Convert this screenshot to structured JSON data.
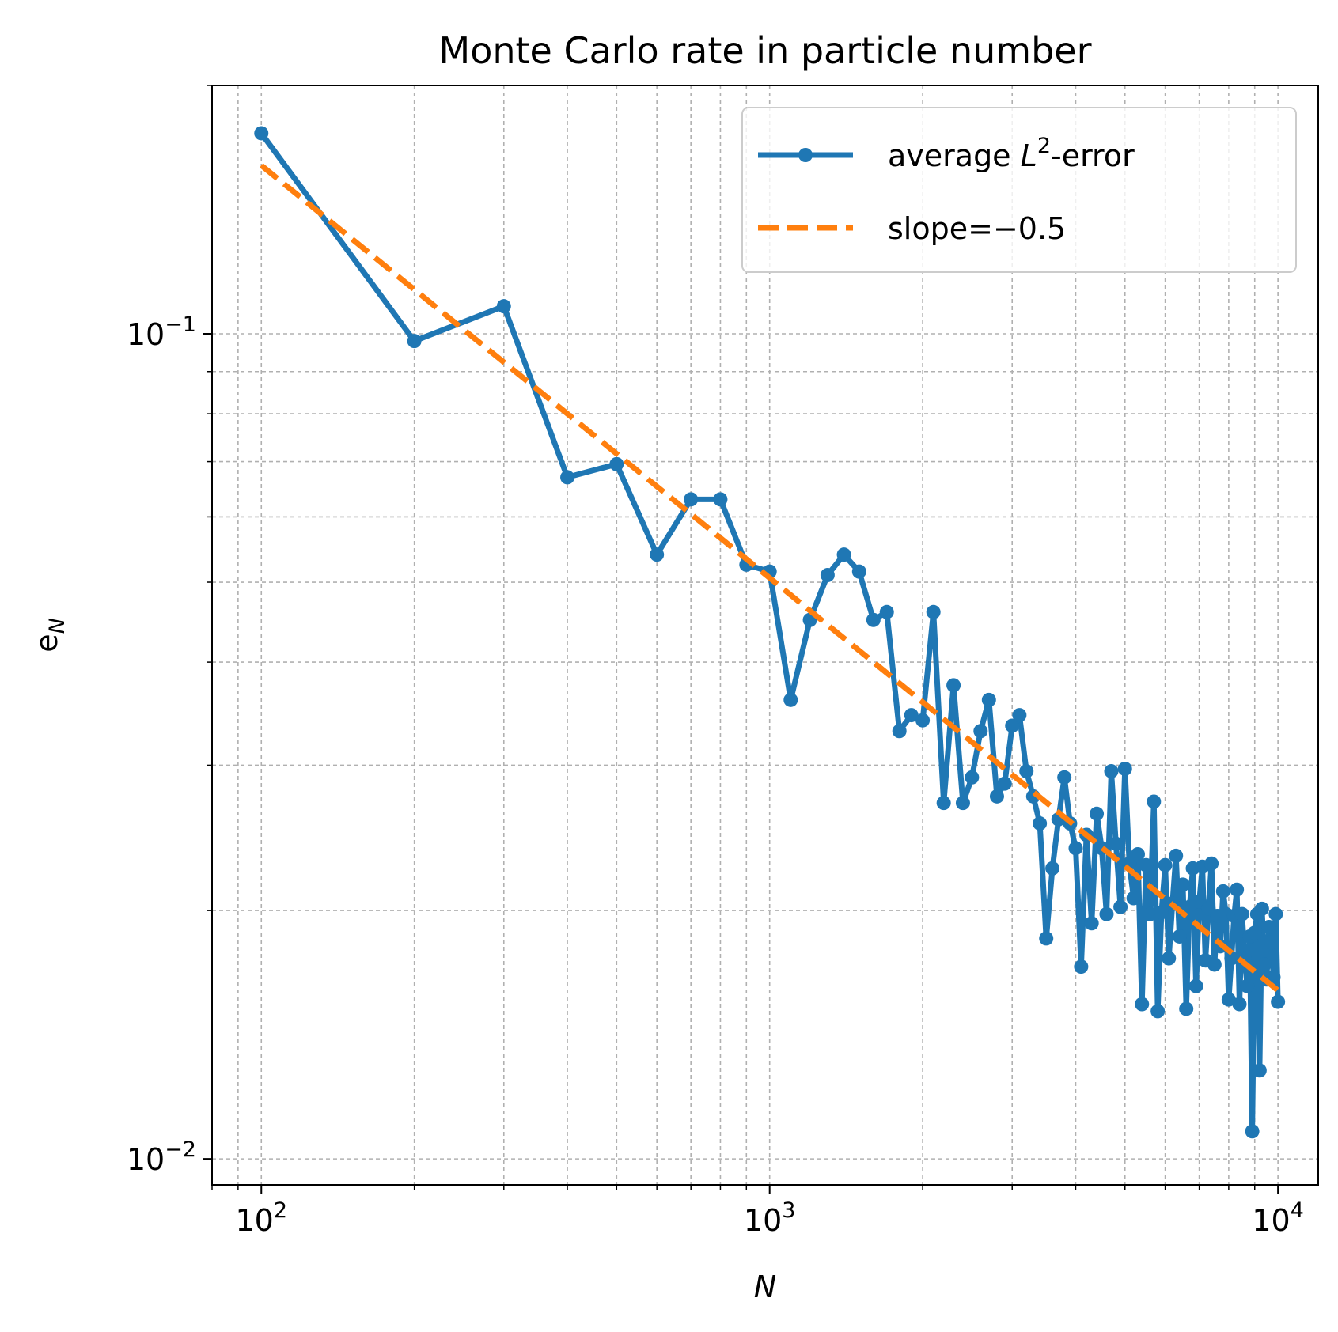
{
  "chart_data": {
    "type": "line",
    "title": "Monte Carlo rate in particle number",
    "xlabel": "N",
    "ylabel_base": "e",
    "ylabel_sub": "N",
    "xscale": "log",
    "yscale": "log",
    "xlim": [
      80,
      12000
    ],
    "ylim": [
      0.0093,
      0.2
    ],
    "grid": true,
    "legend_position": "top-right",
    "x_ticks": [
      {
        "base": "10",
        "exp": "2",
        "value": 100
      },
      {
        "base": "10",
        "exp": "3",
        "value": 1000
      },
      {
        "base": "10",
        "exp": "4",
        "value": 10000
      }
    ],
    "y_ticks": [
      {
        "base": "10",
        "exp": "−1",
        "value": 0.1
      },
      {
        "base": "10",
        "exp": "−2",
        "value": 0.01
      }
    ],
    "series": [
      {
        "name": "average L²-error",
        "legend_label_pre": "average ",
        "legend_label_math": "L",
        "legend_label_sup": "2",
        "legend_label_post": "-error",
        "color": "#1f77b4",
        "style": "solid",
        "marker": "circle",
        "x": [
          100,
          200,
          300,
          400,
          500,
          600,
          700,
          800,
          900,
          1000,
          1100,
          1200,
          1300,
          1400,
          1500,
          1600,
          1700,
          1800,
          1900,
          2000,
          2100,
          2200,
          2300,
          2400,
          2500,
          2600,
          2700,
          2800,
          2900,
          3000,
          3100,
          3200,
          3300,
          3400,
          3500,
          3600,
          3700,
          3800,
          3900,
          4000,
          4100,
          4200,
          4300,
          4400,
          4500,
          4600,
          4700,
          4800,
          4900,
          5000,
          5100,
          5200,
          5300,
          5400,
          5500,
          5600,
          5700,
          5800,
          5900,
          6000,
          6100,
          6200,
          6300,
          6400,
          6500,
          6600,
          6700,
          6800,
          6900,
          7000,
          7100,
          7200,
          7300,
          7400,
          7500,
          7600,
          7700,
          7800,
          7900,
          8000,
          8100,
          8200,
          8300,
          8400,
          8500,
          8600,
          8700,
          8800,
          8900,
          9000,
          9100,
          9200,
          9300,
          9400,
          9500,
          9600,
          9700,
          9800,
          9900,
          10000
        ],
        "y": [
          0.175,
          0.098,
          0.108,
          0.067,
          0.0695,
          0.054,
          0.063,
          0.063,
          0.0525,
          0.0515,
          0.036,
          0.045,
          0.051,
          0.054,
          0.0515,
          0.045,
          0.046,
          0.033,
          0.0345,
          0.034,
          0.046,
          0.027,
          0.0375,
          0.027,
          0.029,
          0.033,
          0.036,
          0.0275,
          0.0285,
          0.0335,
          0.0345,
          0.0295,
          0.0275,
          0.0255,
          0.0185,
          0.0225,
          0.0258,
          0.029,
          0.0255,
          0.0238,
          0.0171,
          0.0247,
          0.0193,
          0.0262,
          0.0238,
          0.0198,
          0.0295,
          0.0241,
          0.0202,
          0.0297,
          0.0228,
          0.0207,
          0.0234,
          0.0154,
          0.0227,
          0.0198,
          0.0271,
          0.0151,
          0.0199,
          0.0227,
          0.0175,
          0.0204,
          0.0233,
          0.0186,
          0.0215,
          0.0152,
          0.0202,
          0.0225,
          0.0162,
          0.0205,
          0.0226,
          0.0174,
          0.0201,
          0.0228,
          0.0172,
          0.0197,
          0.0181,
          0.0211,
          0.0198,
          0.0156,
          0.0175,
          0.0197,
          0.0212,
          0.0154,
          0.0198,
          0.0175,
          0.0162,
          0.0186,
          0.0108,
          0.0188,
          0.0198,
          0.0128,
          0.0201,
          0.0172,
          0.0165,
          0.0191,
          0.0183,
          0.0166,
          0.0198,
          0.0155
        ]
      },
      {
        "name": "slope=−0.5",
        "legend_label_pre": "slope=−0.5",
        "color": "#ff7f0e",
        "style": "dashed",
        "marker": "none",
        "x": [
          100,
          10000
        ],
        "y": [
          0.16,
          0.016
        ]
      }
    ]
  }
}
